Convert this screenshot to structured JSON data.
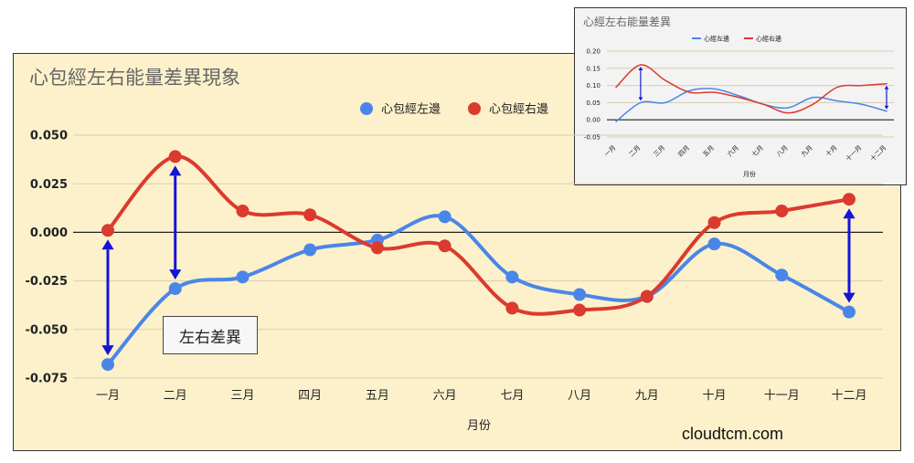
{
  "annotation": "左右差異",
  "watermark": "cloudtcm.com",
  "colors": {
    "left": "#4a86e8",
    "right": "#db3a2f",
    "arrow": "#1515d4"
  },
  "chart_data": [
    {
      "type": "line",
      "title": "心包經左右能量差異現象",
      "xlabel": "月份",
      "ylabel": "",
      "categories": [
        "一月",
        "二月",
        "三月",
        "四月",
        "五月",
        "六月",
        "七月",
        "八月",
        "九月",
        "十月",
        "十一月",
        "十二月"
      ],
      "series": [
        {
          "name": "心包經左邊",
          "values": [
            -0.068,
            -0.029,
            -0.023,
            -0.009,
            -0.004,
            0.008,
            -0.023,
            -0.032,
            -0.033,
            -0.006,
            -0.022,
            -0.041
          ]
        },
        {
          "name": "心包經右邊",
          "values": [
            0.001,
            0.039,
            0.011,
            0.009,
            -0.008,
            -0.007,
            -0.039,
            -0.04,
            -0.033,
            0.005,
            0.011,
            0.017
          ]
        }
      ],
      "yticks": [
        "0.050",
        "0.025",
        "0.000",
        "-0.025",
        "-0.050",
        "-0.075"
      ],
      "ylim": [
        -0.075,
        0.05
      ],
      "legend": "top-right",
      "grid": true
    },
    {
      "type": "line",
      "title": "心經左右能量差異",
      "xlabel": "月份",
      "ylabel": "",
      "categories": [
        "一月",
        "二月",
        "三月",
        "四月",
        "五月",
        "六月",
        "七月",
        "八月",
        "九月",
        "十月",
        "十一月",
        "十二月"
      ],
      "series": [
        {
          "name": "心經左邊",
          "values": [
            -0.005,
            0.05,
            0.05,
            0.085,
            0.09,
            0.07,
            0.045,
            0.035,
            0.065,
            0.055,
            0.045,
            0.025
          ]
        },
        {
          "name": "心經右邊",
          "values": [
            0.095,
            0.16,
            0.115,
            0.08,
            0.08,
            0.065,
            0.045,
            0.02,
            0.045,
            0.095,
            0.1,
            0.105
          ]
        }
      ],
      "yticks": [
        "0.20",
        "0.15",
        "0.10",
        "0.05",
        "0.00",
        "-0.05"
      ],
      "ylim": [
        -0.05,
        0.2
      ],
      "legend": "top",
      "grid": true
    }
  ]
}
